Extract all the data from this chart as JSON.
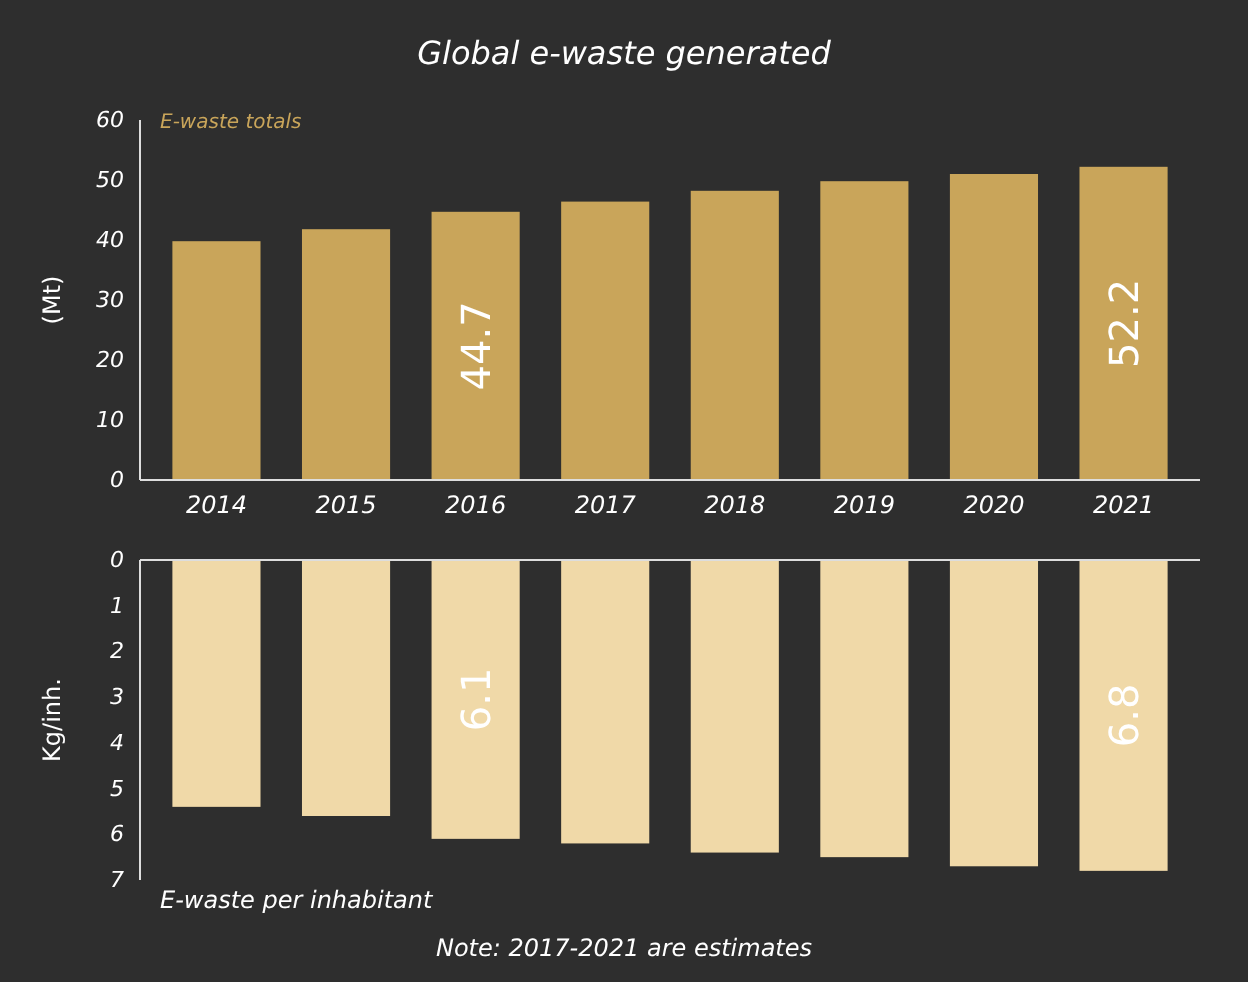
{
  "chart_data": [
    {
      "type": "bar",
      "title": "Global e-waste generated",
      "ylabel": "(Mt)",
      "categories": [
        "2014",
        "2015",
        "2016",
        "2017",
        "2018",
        "2019",
        "2020",
        "2021"
      ],
      "values": [
        39.8,
        41.8,
        44.7,
        46.4,
        48.2,
        49.8,
        51.0,
        52.2
      ],
      "value_labels": [
        null,
        null,
        "44.7",
        null,
        null,
        null,
        null,
        "52.2"
      ],
      "color": "#c9a55a",
      "ylim": [
        0,
        60
      ],
      "yticks": [
        0,
        10,
        20,
        30,
        40,
        50,
        60
      ],
      "annotations": [
        "E-waste totals"
      ]
    },
    {
      "type": "bar",
      "ylabel": "Kg/inh.",
      "categories": [
        null,
        null,
        null,
        null,
        null,
        null,
        null,
        null
      ],
      "values": [
        5.4,
        5.6,
        6.1,
        6.2,
        6.4,
        6.5,
        6.7,
        6.8
      ],
      "value_labels": [
        null,
        null,
        "6.1",
        null,
        null,
        null,
        null,
        "6.8"
      ],
      "color": "#f0d9a8",
      "ylim": [
        7,
        0
      ],
      "yticks": [
        0,
        1,
        2,
        3,
        4,
        5,
        6,
        7
      ],
      "tick_labels": "y",
      "annotations": [
        "E-waste per inhabitant",
        "Note: 2017-2021 are estimates"
      ]
    }
  ]
}
